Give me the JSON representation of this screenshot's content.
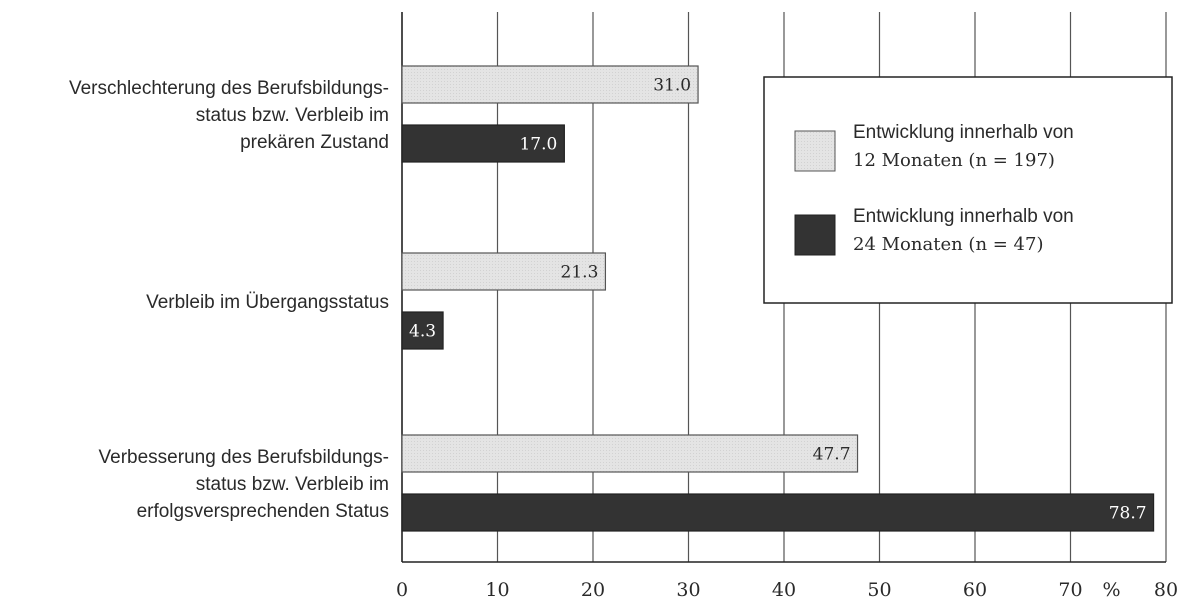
{
  "chart_data": {
    "type": "bar",
    "orientation": "horizontal",
    "categories": [
      [
        "Verschlechterung des Berufsbildungs-",
        "status bzw. Verbleib im",
        "prekären Zustand"
      ],
      [
        "Verbleib im Übergangsstatus"
      ],
      [
        "Verbesserung des Berufsbildungs-",
        "status bzw. Verbleib im",
        "erfolgsversprechenden Status"
      ]
    ],
    "series": [
      {
        "name": [
          "Entwicklung innerhalb von",
          "12 Monaten (n = 197)"
        ],
        "values": [
          31.0,
          21.3,
          47.7
        ],
        "labels": [
          "31.0",
          "21.3",
          "47.7"
        ],
        "color": "#e6e6e6",
        "label_color": "#2a2a2a"
      },
      {
        "name": [
          "Entwicklung innerhalb von",
          "24 Monaten (n = 47)"
        ],
        "values": [
          17.0,
          4.3,
          78.7
        ],
        "labels": [
          "17.0",
          "4.3",
          "78.7"
        ],
        "color": "#333333",
        "label_color": "#ffffff"
      }
    ],
    "xlim": [
      0,
      80
    ],
    "xticks": [
      0,
      10,
      20,
      30,
      40,
      50,
      60,
      70,
      80
    ],
    "xunit": "%",
    "grid": "vertical",
    "legend": "top-right"
  }
}
